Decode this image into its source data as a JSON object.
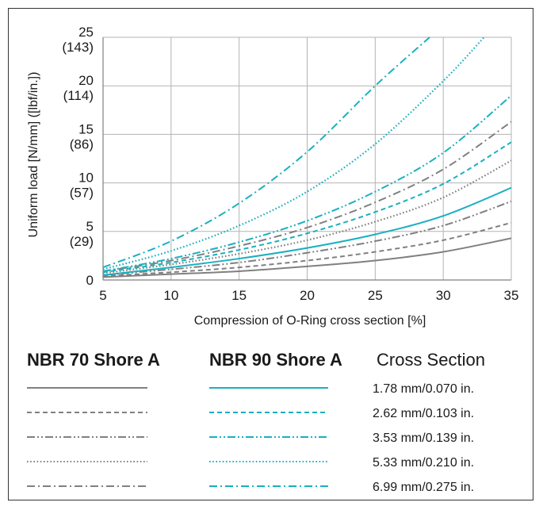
{
  "chart_data": {
    "type": "line",
    "xlabel": "Compression of O-Ring cross section [%]",
    "ylabel": "Uniform load [N/mm] ([lbf/in.])",
    "xlim": [
      5,
      35
    ],
    "ylim": [
      0,
      25
    ],
    "x_ticks": [
      "5",
      "10",
      "15",
      "20",
      "25",
      "30",
      "35"
    ],
    "y_ticks": [
      {
        "value": 0,
        "label": "0",
        "sub": ""
      },
      {
        "value": 5,
        "label": "5",
        "sub": "(29)"
      },
      {
        "value": 10,
        "label": "10",
        "sub": "(57)"
      },
      {
        "value": 15,
        "label": "15",
        "sub": "(86)"
      },
      {
        "value": 20,
        "label": "20",
        "sub": "(114)"
      },
      {
        "value": 25,
        "label": "25",
        "sub": "(143)"
      }
    ],
    "grid": true,
    "colors": {
      "nbr70": "#808080",
      "nbr90": "#1ab0bf"
    },
    "series": [
      {
        "name": "NBR 70 Shore A 1.78 mm/0.070 in.",
        "group": "nbr70",
        "dash": "solid",
        "x": [
          5,
          10,
          15,
          20,
          25,
          30,
          35
        ],
        "y": [
          0.3,
          0.6,
          0.9,
          1.4,
          2.0,
          2.9,
          4.3
        ]
      },
      {
        "name": "NBR 70 Shore A 2.62 mm/0.103 in.",
        "group": "nbr70",
        "dash": "dash",
        "x": [
          5,
          10,
          15,
          20,
          25,
          30,
          35
        ],
        "y": [
          0.4,
          0.8,
          1.3,
          2.0,
          2.9,
          4.1,
          5.9
        ]
      },
      {
        "name": "NBR 70 Shore A 3.53 mm/0.139 in.",
        "group": "nbr70",
        "dash": "dashdotdot",
        "x": [
          5,
          10,
          15,
          20,
          25,
          30,
          35
        ],
        "y": [
          0.5,
          1.1,
          1.8,
          2.8,
          4.0,
          5.6,
          8.1
        ]
      },
      {
        "name": "NBR 70 Shore A 5.33 mm/0.210 in.",
        "group": "nbr70",
        "dash": "dot",
        "x": [
          5,
          10,
          15,
          20,
          25,
          30,
          35
        ],
        "y": [
          0.7,
          1.6,
          2.7,
          4.1,
          6.0,
          8.5,
          12.3
        ]
      },
      {
        "name": "NBR 70 Shore A 6.99 mm/0.275 in.",
        "group": "nbr70",
        "dash": "dashdot",
        "x": [
          5,
          10,
          15,
          20,
          25,
          30,
          35
        ],
        "y": [
          0.9,
          2.0,
          3.5,
          5.4,
          8.0,
          11.4,
          16.3
        ]
      },
      {
        "name": "NBR 90 Shore A 1.78 mm/0.070 in.",
        "group": "nbr90",
        "dash": "solid",
        "x": [
          5,
          10,
          15,
          20,
          25,
          30,
          35
        ],
        "y": [
          0.5,
          1.3,
          2.2,
          3.3,
          4.7,
          6.6,
          9.5
        ]
      },
      {
        "name": "NBR 90 Shore A 2.62 mm/0.103 in.",
        "group": "nbr90",
        "dash": "dash",
        "x": [
          5,
          10,
          15,
          20,
          25,
          30,
          35
        ],
        "y": [
          0.8,
          1.8,
          3.1,
          4.8,
          7.0,
          9.9,
          14.2
        ]
      },
      {
        "name": "NBR 90 Shore A 3.53 mm/0.139 in.",
        "group": "nbr90",
        "dash": "dashdotdot",
        "x": [
          5,
          10,
          15,
          20,
          25,
          30,
          35
        ],
        "y": [
          0.9,
          2.2,
          3.9,
          6.1,
          9.1,
          13.1,
          19.0
        ]
      },
      {
        "name": "NBR 90 Shore A 5.33 mm/0.210 in.",
        "group": "nbr90",
        "dash": "dot",
        "x": [
          5,
          10,
          15,
          20,
          25,
          30,
          33
        ],
        "y": [
          1.1,
          3.0,
          5.6,
          9.1,
          14.0,
          20.5,
          25.0
        ]
      },
      {
        "name": "NBR 90 Shore A 6.99 mm/0.275 in.",
        "group": "nbr90",
        "dash": "dashdot",
        "x": [
          5,
          10,
          15,
          20,
          25,
          29
        ],
        "y": [
          1.3,
          4.0,
          7.9,
          13.2,
          20.0,
          25.0
        ]
      }
    ]
  },
  "legend": {
    "col1_header": "NBR 70 Shore A",
    "col2_header": "NBR 90 Shore A",
    "col3_header": "Cross Section",
    "rows": [
      {
        "dash": "solid",
        "label": "1.78 mm/0.070 in."
      },
      {
        "dash": "dash",
        "label": "2.62 mm/0.103 in."
      },
      {
        "dash": "dashdotdot",
        "label": "3.53 mm/0.139 in."
      },
      {
        "dash": "dot",
        "label": "5.33 mm/0.210 in."
      },
      {
        "dash": "dashdot",
        "label": "6.99 mm/0.275 in."
      }
    ]
  }
}
